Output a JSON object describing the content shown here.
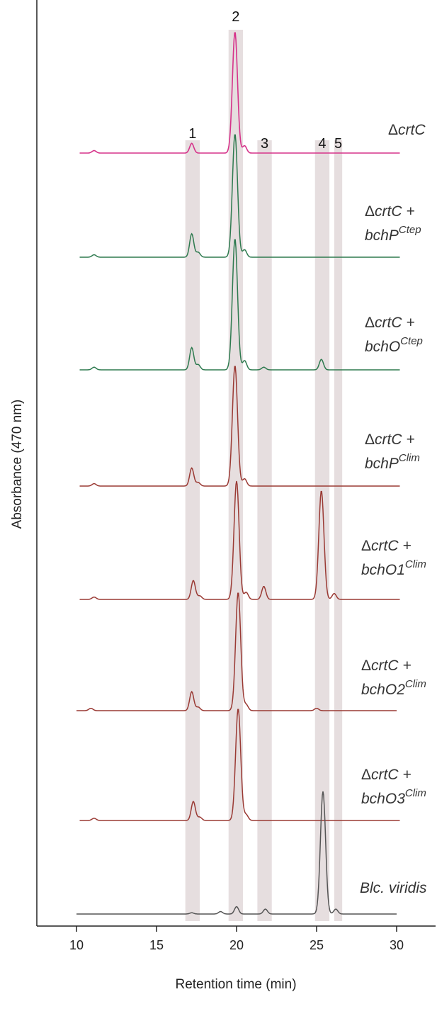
{
  "chart_data": {
    "type": "line",
    "xlabel": "Retention time (min)",
    "ylabel": "Absorbance (470 nm)",
    "xlim": [
      7.5,
      32.5
    ],
    "xticks": [
      10,
      15,
      20,
      25,
      30
    ],
    "bands": [
      {
        "label": "1",
        "range": [
          16.8,
          17.7
        ]
      },
      {
        "label": "2",
        "range": [
          19.5,
          20.4
        ]
      },
      {
        "label": "3",
        "range": [
          21.3,
          22.2
        ]
      },
      {
        "label": "4",
        "range": [
          24.9,
          25.8
        ]
      },
      {
        "label": "5",
        "range": [
          26.1,
          26.6
        ]
      }
    ],
    "series": [
      {
        "name": "ΔcrtC",
        "name_prefix": "Δ",
        "name_main": "crtC",
        "name_line2": "",
        "name_sup": "",
        "color": "#d6338a",
        "x_range": [
          10.2,
          30.2
        ],
        "peaks": [
          {
            "x": 11.1,
            "h": 0.02
          },
          {
            "x": 17.2,
            "h": 0.08
          },
          {
            "x": 19.9,
            "h": 1.0
          },
          {
            "x": 20.5,
            "h": 0.06
          }
        ]
      },
      {
        "name": "ΔcrtC + bchPCtep",
        "name_prefix": "Δ",
        "name_main": "crtC +",
        "name_line2": "bchP",
        "name_sup": "Ctep",
        "color": "#2e7a4f",
        "x_range": [
          10.2,
          30.2
        ],
        "peaks": [
          {
            "x": 11.1,
            "h": 0.02
          },
          {
            "x": 17.2,
            "h": 0.19
          },
          {
            "x": 17.6,
            "h": 0.04
          },
          {
            "x": 19.9,
            "h": 1.0
          },
          {
            "x": 20.5,
            "h": 0.06
          }
        ]
      },
      {
        "name": "ΔcrtC + bchOCtep",
        "name_prefix": "Δ",
        "name_main": "crtC +",
        "name_line2": "bchO",
        "name_sup": "Ctep",
        "color": "#2e7a4f",
        "x_range": [
          10.2,
          30.2
        ],
        "peaks": [
          {
            "x": 11.1,
            "h": 0.02
          },
          {
            "x": 17.2,
            "h": 0.17
          },
          {
            "x": 17.6,
            "h": 0.04
          },
          {
            "x": 19.9,
            "h": 1.0
          },
          {
            "x": 20.5,
            "h": 0.07
          },
          {
            "x": 21.7,
            "h": 0.02
          },
          {
            "x": 25.3,
            "h": 0.08
          }
        ]
      },
      {
        "name": "ΔcrtC + bchPClim",
        "name_prefix": "Δ",
        "name_main": "crtC +",
        "name_line2": "bchP",
        "name_sup": "Clim",
        "color": "#9a3a34",
        "x_range": [
          10.2,
          30.2
        ],
        "peaks": [
          {
            "x": 11.1,
            "h": 0.02
          },
          {
            "x": 17.2,
            "h": 0.15
          },
          {
            "x": 17.6,
            "h": 0.03
          },
          {
            "x": 19.9,
            "h": 1.0
          },
          {
            "x": 20.5,
            "h": 0.06
          }
        ]
      },
      {
        "name": "ΔcrtC + bchO1Clim",
        "name_prefix": "Δ",
        "name_main": "crtC +",
        "name_line2": "bchO1",
        "name_sup": "Clim",
        "color": "#9a3a34",
        "x_range": [
          10.2,
          30.2
        ],
        "peaks": [
          {
            "x": 11.1,
            "h": 0.02
          },
          {
            "x": 17.3,
            "h": 0.16
          },
          {
            "x": 17.7,
            "h": 0.03
          },
          {
            "x": 20.0,
            "h": 1.0
          },
          {
            "x": 20.6,
            "h": 0.06
          },
          {
            "x": 21.7,
            "h": 0.11
          },
          {
            "x": 25.3,
            "h": 0.92
          },
          {
            "x": 26.1,
            "h": 0.05
          }
        ]
      },
      {
        "name": "ΔcrtC + bchO2Clim",
        "name_prefix": "Δ",
        "name_main": "crtC +",
        "name_line2": "bchO2",
        "name_sup": "Clim",
        "color": "#9a3a34",
        "x_range": [
          10.0,
          30.0
        ],
        "peaks": [
          {
            "x": 10.9,
            "h": 0.02
          },
          {
            "x": 17.2,
            "h": 0.16
          },
          {
            "x": 17.6,
            "h": 0.03
          },
          {
            "x": 20.1,
            "h": 1.0
          },
          {
            "x": 20.6,
            "h": 0.05
          },
          {
            "x": 25.0,
            "h": 0.02
          }
        ]
      },
      {
        "name": "ΔcrtC + bchO3Clim",
        "name_prefix": "Δ",
        "name_main": "crtC +",
        "name_line2": "bchO3",
        "name_sup": "Clim",
        "color": "#9a3a34",
        "x_range": [
          10.2,
          30.2
        ],
        "peaks": [
          {
            "x": 11.1,
            "h": 0.02
          },
          {
            "x": 17.3,
            "h": 0.17
          },
          {
            "x": 17.7,
            "h": 0.03
          },
          {
            "x": 20.1,
            "h": 1.0
          },
          {
            "x": 20.6,
            "h": 0.05
          }
        ]
      },
      {
        "name": "Blc. viridis",
        "name_prefix": "",
        "name_main": "Blc. viridis",
        "name_line2": "",
        "name_sup": "",
        "color": "#555555",
        "x_range": [
          10.0,
          30.0
        ],
        "peaks": [
          {
            "x": 17.2,
            "h": 0.01
          },
          {
            "x": 19.0,
            "h": 0.02
          },
          {
            "x": 20.0,
            "h": 0.06
          },
          {
            "x": 21.8,
            "h": 0.04
          },
          {
            "x": 25.4,
            "h": 1.0
          },
          {
            "x": 26.2,
            "h": 0.04
          }
        ]
      }
    ]
  }
}
